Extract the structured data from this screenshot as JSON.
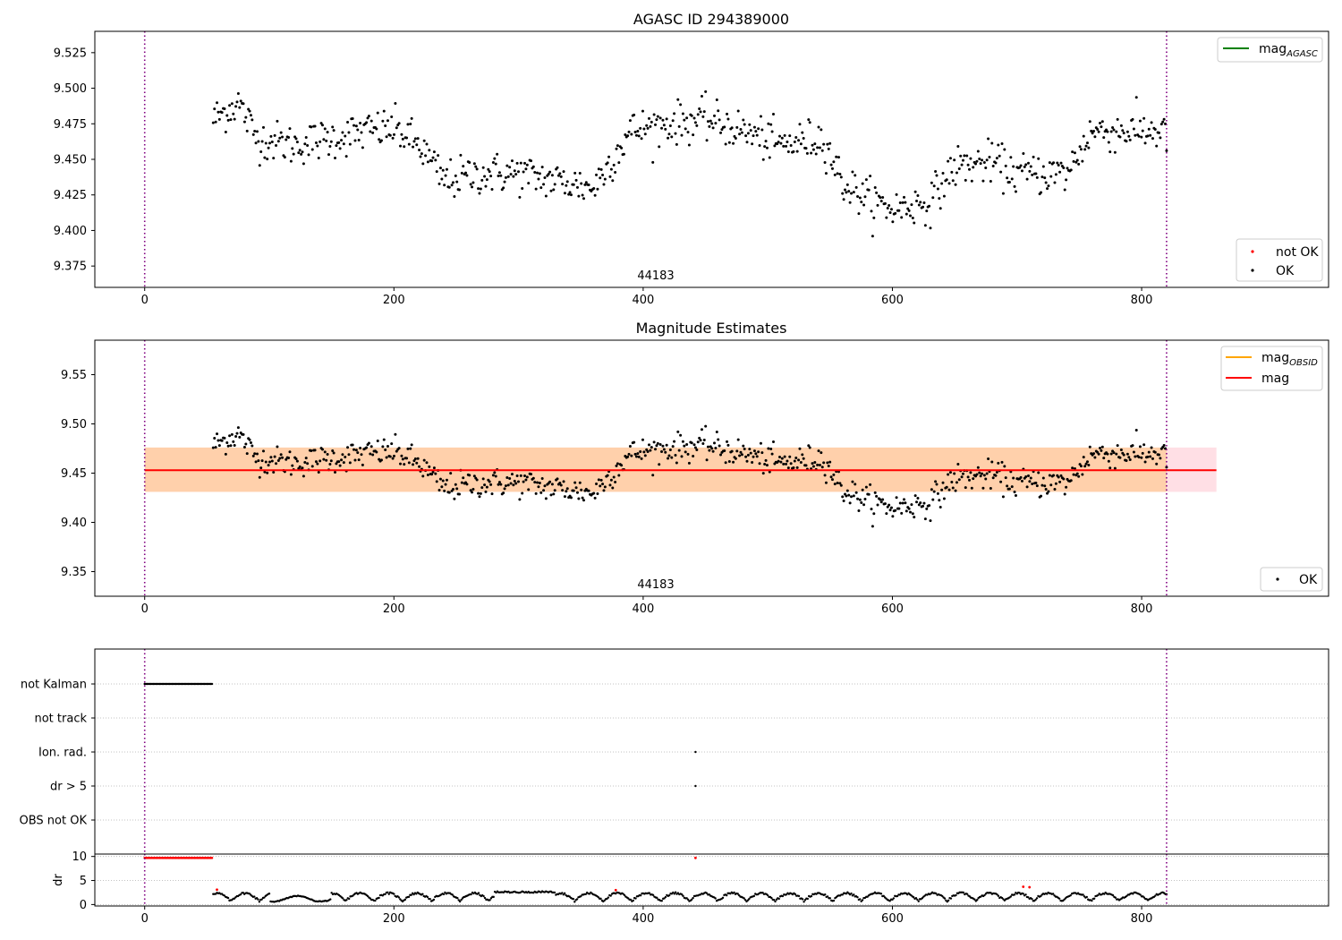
{
  "chart_data": [
    {
      "type": "scatter",
      "title": "AGASC ID 294389000",
      "xlim": [
        -40,
        950
      ],
      "ylim": [
        9.36,
        9.54
      ],
      "xticks": [
        0,
        200,
        400,
        600,
        800
      ],
      "yticks": [
        9.375,
        9.4,
        9.425,
        9.45,
        9.475,
        9.5,
        9.525
      ],
      "ytick_labels": [
        "9.375",
        "9.400",
        "9.425",
        "9.450",
        "9.475",
        "9.500",
        "9.525"
      ],
      "vlines": [
        0,
        820
      ],
      "annotation": {
        "text": "44183",
        "x": 410,
        "y": 9.366
      },
      "legend_top": [
        {
          "label": "mag",
          "subscript": "AGASC",
          "color": "#008000"
        }
      ],
      "legend_bottom": [
        {
          "label": "not OK",
          "color": "#ff0000"
        },
        {
          "label": "OK",
          "color": "#000000"
        }
      ],
      "series": [
        {
          "name": "OK",
          "color": "#000000",
          "trend": {
            "x": [
              55,
              75,
              90,
              120,
              150,
              180,
              200,
              220,
              240,
              270,
              300,
              330,
              360,
              375,
              390,
              420,
              450,
              480,
              510,
              545,
              560,
              585,
              600,
              630,
              650,
              680,
              700,
              720,
              740,
              760,
              790,
              815,
              820
            ],
            "y": [
              9.478,
              9.49,
              9.465,
              9.46,
              9.465,
              9.47,
              9.472,
              9.46,
              9.435,
              9.44,
              9.44,
              9.435,
              9.43,
              9.45,
              9.47,
              9.475,
              9.478,
              9.47,
              9.46,
              9.465,
              9.433,
              9.42,
              9.415,
              9.42,
              9.445,
              9.448,
              9.44,
              9.44,
              9.44,
              9.47,
              9.47,
              9.47,
              9.468
            ]
          },
          "spread": 0.012,
          "x_start": 55,
          "x_end": 820,
          "n_points": 760
        }
      ]
    },
    {
      "type": "scatter",
      "title": "Magnitude Estimates",
      "xlim": [
        -40,
        950
      ],
      "ylim": [
        9.325,
        9.585
      ],
      "xticks": [
        0,
        200,
        400,
        600,
        800
      ],
      "yticks": [
        9.35,
        9.4,
        9.45,
        9.5,
        9.55
      ],
      "ytick_labels": [
        "9.35",
        "9.40",
        "9.45",
        "9.50",
        "9.55"
      ],
      "vlines": [
        0,
        820
      ],
      "annotation": {
        "text": "44183",
        "x": 410,
        "y": 9.333
      },
      "bands": [
        {
          "x": [
            0,
            860
          ],
          "y": [
            9.431,
            9.476
          ],
          "color": "#ffc0cb",
          "opacity": 0.5
        },
        {
          "x": [
            0,
            820
          ],
          "y": [
            9.431,
            9.476
          ],
          "color": "#ffa500",
          "opacity": 0.25
        }
      ],
      "lines": [
        {
          "name": "mag",
          "x": [
            0,
            860
          ],
          "y": 9.453,
          "color": "#ff0000"
        }
      ],
      "legend_top": [
        {
          "label": "mag",
          "subscript": "OBSID",
          "color": "#ffa500"
        },
        {
          "label": "mag",
          "subscript": "",
          "color": "#ff0000"
        }
      ],
      "legend_bottom": [
        {
          "label": "OK",
          "color": "#000000"
        }
      ],
      "series": [
        {
          "name": "OK",
          "color": "#000000",
          "same_as_panel": 0
        }
      ]
    },
    {
      "type": "scatter",
      "title": "",
      "xlim": [
        -40,
        950
      ],
      "vlines": [
        0,
        820
      ],
      "categories": [
        "not Kalman",
        "not track",
        "Ion. rad.",
        "dr > 5",
        "OBS not OK"
      ],
      "flags": [
        {
          "category": "not Kalman",
          "x_range": [
            0,
            54
          ]
        },
        {
          "category": "Ion. rad.",
          "x": [
            442
          ]
        },
        {
          "category": "dr > 5",
          "x": [
            442
          ]
        }
      ]
    },
    {
      "type": "scatter",
      "title": "",
      "ylabel": "dr",
      "xlim": [
        -40,
        950
      ],
      "ylim": [
        -0.3,
        10.5
      ],
      "xticks": [
        0,
        200,
        400,
        600,
        800
      ],
      "yticks": [
        0,
        5,
        10
      ],
      "ytick_labels": [
        "0",
        "5",
        "10"
      ],
      "vlines": [
        0,
        820
      ],
      "series": [
        {
          "name": "not OK",
          "color": "#ff0000",
          "points": [
            [
              0,
              9.7
            ],
            [
              54,
              9.7
            ],
            [
              442,
              9.7
            ],
            [
              58,
              3.1
            ],
            [
              378,
              3.0
            ],
            [
              705,
              3.7
            ],
            [
              710,
              3.6
            ]
          ]
        },
        {
          "name": "OK",
          "color": "#000000",
          "range": [
            55,
            820
          ],
          "min": 0.2,
          "max": 2.9
        }
      ]
    }
  ]
}
